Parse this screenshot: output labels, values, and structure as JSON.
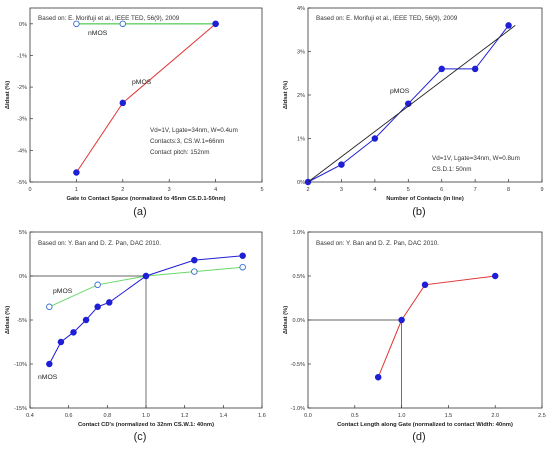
{
  "chart_data": [
    {
      "type": "scatter",
      "panel_label": "(a)",
      "annotation": "Based on: E. Morifuji et al., IEEE TED, 56(9), 2009",
      "notes": [
        "Vd=1V, Lgate=34nm, W=0.4um",
        "Contacts:3, CS.W.1=66nm",
        "Contact pitch: 152nm"
      ],
      "xlabel": "Gate to Contact Space (normalized to 45nm CS.D.1-50nm)",
      "ylabel": "ΔIdsat (%)",
      "xlim": [
        0,
        5
      ],
      "ylim": [
        -5,
        0.5
      ],
      "xticks": [
        0,
        1,
        2,
        3,
        4,
        5
      ],
      "yticks": [
        0,
        -1,
        -2,
        -3,
        -4,
        -5
      ],
      "ytick_suffix": "%",
      "series": [
        {
          "name": "nMOS",
          "color": "#22c02a",
          "marker": "open",
          "x": [
            1,
            2,
            4
          ],
          "y": [
            0,
            0,
            0
          ]
        },
        {
          "name": "pMOS",
          "color": "#e03535",
          "marker": "filled",
          "x": [
            1,
            2,
            4
          ],
          "y": [
            -4.7,
            -2.5,
            0
          ]
        }
      ]
    },
    {
      "type": "scatter",
      "panel_label": "(b)",
      "annotation": "Based on: E. Morifuji et al., IEEE TED, 56(9), 2009",
      "notes": [
        "Vd=1V, Lgate=34nm, W=0.8um",
        "CS.D.1: 50nm"
      ],
      "xlabel": "Number of Contacts (in line)",
      "ylabel": "ΔIdsat (%)",
      "xlim": [
        2,
        9
      ],
      "ylim": [
        0,
        4
      ],
      "xticks": [
        2,
        3,
        4,
        5,
        6,
        7,
        8,
        9
      ],
      "yticks": [
        0,
        1,
        2,
        3,
        4
      ],
      "ytick_suffix": "%",
      "series": [
        {
          "name": "pMOS",
          "color": "#1f1fd6",
          "marker": "filled",
          "x": [
            2,
            3,
            4,
            5,
            6,
            7,
            8
          ],
          "y": [
            0,
            0.4,
            1.0,
            1.8,
            2.6,
            2.6,
            3.6
          ]
        },
        {
          "name": "",
          "color": "#222222",
          "marker": "none",
          "x": [
            2,
            8.2
          ],
          "y": [
            0,
            3.6
          ]
        }
      ]
    },
    {
      "type": "scatter",
      "panel_label": "(c)",
      "annotation": "Based on: Y. Ban and D. Z. Pan, DAC 2010.",
      "notes": [],
      "xlabel": "Contact CD's (normalized to 32nm CS.W.1: 40nm)",
      "ylabel": "ΔIdsat (%)",
      "xlim": [
        0.4,
        1.6
      ],
      "ylim": [
        -15,
        5
      ],
      "xticks": [
        0.4,
        0.6,
        0.8,
        1,
        1.2,
        1.4,
        1.6
      ],
      "yticks": [
        5,
        0,
        -5,
        -10,
        -15
      ],
      "ytick_suffix": "%",
      "series": [
        {
          "name": "pMOS",
          "color": "#6ad86a",
          "marker": "open",
          "x": [
            0.5,
            0.75,
            1.0,
            1.25,
            1.5
          ],
          "y": [
            -3.5,
            -1.0,
            0,
            0.5,
            1.0
          ]
        },
        {
          "name": "nMOS",
          "color": "#1f1fd6",
          "marker": "filled",
          "x": [
            0.5,
            0.56,
            0.625,
            0.69,
            0.75,
            0.81,
            1.0,
            1.25,
            1.5
          ],
          "y": [
            -10.0,
            -7.5,
            -6.4,
            -5.0,
            -3.5,
            -3.0,
            0,
            1.8,
            2.3
          ]
        }
      ]
    },
    {
      "type": "line",
      "panel_label": "(d)",
      "annotation": "Based on: Y. Ban and D. Z. Pan, DAC 2010.",
      "notes": [],
      "xlabel": "Contact Length along Gate (normalized to contact Width: 40nm)",
      "ylabel": "ΔIdsat (%)",
      "xlim": [
        0,
        2.5
      ],
      "ylim": [
        -1.0,
        1.0
      ],
      "xticks": [
        0,
        0.5,
        1,
        1.5,
        2,
        2.5
      ],
      "yticks": [
        1.0,
        0.5,
        0.0,
        -0.5,
        -1.0
      ],
      "ytick_suffix": "%",
      "series": [
        {
          "name": "",
          "color": "#e03535",
          "marker": "filled",
          "x": [
            0.75,
            1.0,
            1.25,
            2.0
          ],
          "y": [
            -0.65,
            0.0,
            0.4,
            0.5
          ]
        }
      ]
    }
  ]
}
